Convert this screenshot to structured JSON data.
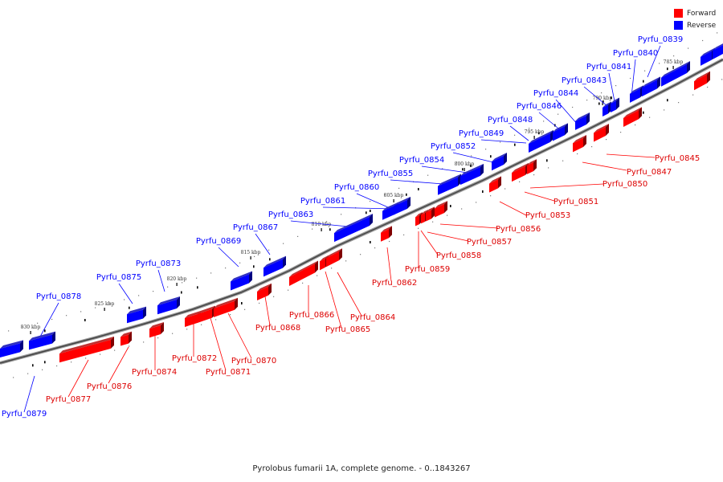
{
  "legend": {
    "forward_label": "Forward",
    "reverse_label": "Reverse",
    "forward_color": "#ff0000",
    "reverse_color": "#0000ff"
  },
  "caption": "Pyrolobus fumarii 1A, complete genome. - 0..1843267",
  "scale_labels": [
    "785 kbp",
    "790 kbp",
    "795 kbp",
    "800 kbp",
    "805 kbp",
    "810 kbp",
    "815 kbp",
    "820 kbp",
    "825 kbp",
    "830 kbp"
  ],
  "reverse_genes": [
    "Pyrfu_0839",
    "Pyrfu_0840",
    "Pyrfu_0841",
    "Pyrfu_0843",
    "Pyrfu_0844",
    "Pyrfu_0846",
    "Pyrfu_0848",
    "Pyrfu_0849",
    "Pyrfu_0852",
    "Pyrfu_0854",
    "Pyrfu_0855",
    "Pyrfu_0860",
    "Pyrfu_0861",
    "Pyrfu_0863",
    "Pyrfu_0867",
    "Pyrfu_0869",
    "Pyrfu_0873",
    "Pyrfu_0875",
    "Pyrfu_0878",
    "Pyrfu_0879"
  ],
  "forward_genes": [
    "Pyrfu_0845",
    "Pyrfu_0847",
    "Pyrfu_0850",
    "Pyrfu_0851",
    "Pyrfu_0853",
    "Pyrfu_0856",
    "Pyrfu_0857",
    "Pyrfu_0858",
    "Pyrfu_0859",
    "Pyrfu_0862",
    "Pyrfu_0864",
    "Pyrfu_0865",
    "Pyrfu_0866",
    "Pyrfu_0868",
    "Pyrfu_0870",
    "Pyrfu_0871",
    "Pyrfu_0872",
    "Pyrfu_0874",
    "Pyrfu_0876",
    "Pyrfu_0877"
  ]
}
